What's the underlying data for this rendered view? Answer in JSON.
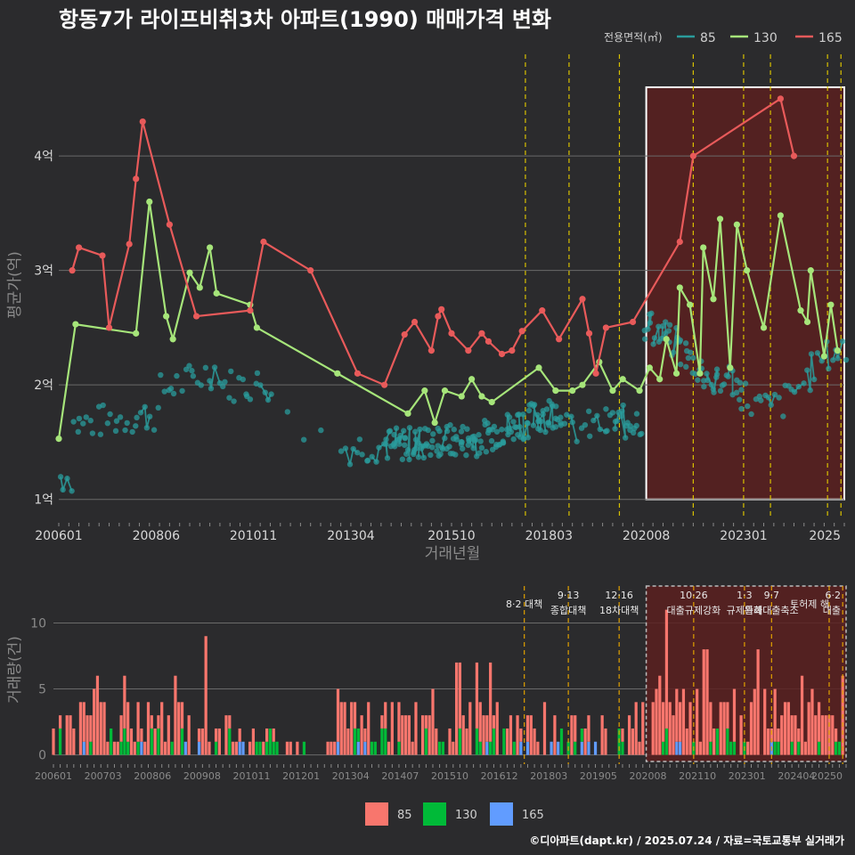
{
  "title": "항동7가 라이프비취3차 아파트(1990) 매매가격 변화",
  "footer": "©디아파트(dapt.kr) / 2025.07.24 / 자료=국토교통부 실거래가",
  "legend_top": {
    "title": "전용면적(㎡)",
    "items": [
      {
        "label": "85",
        "color": "#2a9c9c"
      },
      {
        "label": "130",
        "color": "#a6e57a"
      },
      {
        "label": "165",
        "color": "#e85a5a"
      }
    ]
  },
  "legend_bottom": {
    "items": [
      {
        "label": "85",
        "color": "#f8766d"
      },
      {
        "label": "130",
        "color": "#00ba38"
      },
      {
        "label": "165",
        "color": "#619cff"
      }
    ]
  },
  "colors": {
    "background": "#2b2b2d",
    "grid": "#6a6a6a",
    "highlight_fill": "#5a2020",
    "vline": "#d8c000",
    "bar_vline": "#e0a000"
  },
  "chart_data": [
    {
      "type": "line",
      "title": "항동7가 라이프비취3차 아파트(1990) 매매가격 변화",
      "xlabel": "거래년월",
      "ylabel": "평균가(억)",
      "x_range": [
        "2006-01",
        "2025-07"
      ],
      "ylim": [
        0.85,
        4.95
      ],
      "y_ticks": [
        {
          "v": 1,
          "label": "1억"
        },
        {
          "v": 2,
          "label": "2억"
        },
        {
          "v": 3,
          "label": "3억"
        },
        {
          "v": 4,
          "label": "4억"
        }
      ],
      "x_ticks": [
        {
          "d": "2006-01",
          "label": "200601"
        },
        {
          "d": "2008-06",
          "label": "200806"
        },
        {
          "d": "2010-11",
          "label": "201011"
        },
        {
          "d": "2013-04",
          "label": "201304"
        },
        {
          "d": "2015-10",
          "label": "201510"
        },
        {
          "d": "2018-03",
          "label": "201803"
        },
        {
          "d": "2020-08",
          "label": "202008"
        },
        {
          "d": "2023-01",
          "label": "202301"
        },
        {
          "d": "2025-07",
          "label": "2025"
        }
      ],
      "highlight_range": [
        "2020-08",
        "2025-07"
      ],
      "policy_dates": [
        "2017-08",
        "2018-09",
        "2019-12",
        "2021-10",
        "2023-01",
        "2023-09",
        "2025-02",
        "2025-06"
      ],
      "series": [
        {
          "name": "130",
          "color": "#a6e57a",
          "points": [
            [
              "2006-01",
              1.53
            ],
            [
              "2006-06",
              2.53
            ],
            [
              "2007-12",
              2.45
            ],
            [
              "2008-04",
              3.6
            ],
            [
              "2008-09",
              2.6
            ],
            [
              "2008-11",
              2.4
            ],
            [
              "2009-04",
              2.98
            ],
            [
              "2009-07",
              2.85
            ],
            [
              "2009-10",
              3.2
            ],
            [
              "2009-12",
              2.8
            ],
            [
              "2010-10",
              2.7
            ],
            [
              "2010-12",
              2.5
            ],
            [
              "2012-12",
              2.1
            ],
            [
              "2014-09",
              1.75
            ],
            [
              "2015-02",
              1.95
            ],
            [
              "2015-05",
              1.67
            ],
            [
              "2015-08",
              1.95
            ],
            [
              "2016-01",
              1.9
            ],
            [
              "2016-04",
              2.05
            ],
            [
              "2016-07",
              1.9
            ],
            [
              "2016-10",
              1.85
            ],
            [
              "2017-12",
              2.15
            ],
            [
              "2018-05",
              1.95
            ],
            [
              "2018-10",
              1.95
            ],
            [
              "2019-01",
              2.0
            ],
            [
              "2019-06",
              2.2
            ],
            [
              "2019-10",
              1.95
            ],
            [
              "2020-01",
              2.05
            ],
            [
              "2020-06",
              1.95
            ],
            [
              "2020-09",
              2.15
            ],
            [
              "2020-12",
              2.05
            ],
            [
              "2021-02",
              2.4
            ],
            [
              "2021-05",
              2.1
            ],
            [
              "2021-06",
              2.85
            ],
            [
              "2021-09",
              2.7
            ],
            [
              "2021-12",
              2.1
            ],
            [
              "2022-01",
              3.2
            ],
            [
              "2022-04",
              2.75
            ],
            [
              "2022-06",
              3.45
            ],
            [
              "2022-09",
              2.15
            ],
            [
              "2022-11",
              3.4
            ],
            [
              "2023-02",
              3.0
            ],
            [
              "2023-07",
              2.5
            ],
            [
              "2023-12",
              3.48
            ],
            [
              "2024-06",
              2.65
            ],
            [
              "2024-08",
              2.55
            ],
            [
              "2024-09",
              3.0
            ],
            [
              "2025-01",
              2.25
            ],
            [
              "2025-03",
              2.7
            ],
            [
              "2025-05",
              2.3
            ]
          ]
        },
        {
          "name": "165",
          "color": "#e85a5a",
          "points": [
            [
              "2006-05",
              3.0
            ],
            [
              "2006-07",
              3.2
            ],
            [
              "2007-02",
              3.13
            ],
            [
              "2007-04",
              2.5
            ],
            [
              "2007-10",
              3.23
            ],
            [
              "2007-12",
              3.8
            ],
            [
              "2008-02",
              4.3
            ],
            [
              "2008-10",
              3.4
            ],
            [
              "2009-06",
              2.6
            ],
            [
              "2010-10",
              2.65
            ],
            [
              "2011-02",
              3.25
            ],
            [
              "2012-04",
              3.0
            ],
            [
              "2013-06",
              2.1
            ],
            [
              "2014-02",
              2.0
            ],
            [
              "2014-08",
              2.44
            ],
            [
              "2014-11",
              2.55
            ],
            [
              "2015-04",
              2.3
            ],
            [
              "2015-06",
              2.6
            ],
            [
              "2015-07",
              2.66
            ],
            [
              "2015-10",
              2.45
            ],
            [
              "2016-03",
              2.3
            ],
            [
              "2016-07",
              2.45
            ],
            [
              "2016-09",
              2.38
            ],
            [
              "2017-01",
              2.27
            ],
            [
              "2017-04",
              2.3
            ],
            [
              "2017-07",
              2.47
            ],
            [
              "2018-01",
              2.65
            ],
            [
              "2018-06",
              2.4
            ],
            [
              "2019-01",
              2.75
            ],
            [
              "2019-03",
              2.45
            ],
            [
              "2019-05",
              2.1
            ],
            [
              "2019-08",
              2.5
            ],
            [
              "2020-04",
              2.55
            ],
            [
              "2021-06",
              3.25
            ],
            [
              "2021-10",
              4.0
            ],
            [
              "2023-12",
              4.5
            ],
            [
              "2024-04",
              4.0
            ]
          ]
        }
      ],
      "series_85_color": "#2a9c9c"
    },
    {
      "type": "bar",
      "xlabel": "",
      "ylabel": "거래량(건)",
      "ylim": [
        -0.5,
        13
      ],
      "y_ticks": [
        0,
        5,
        10
      ],
      "x_ticks": [
        "200601",
        "200703",
        "200806",
        "200908",
        "201011",
        "201201",
        "201304",
        "201407",
        "201510",
        "201612",
        "201803",
        "201905",
        "202008",
        "202110",
        "202301",
        "202404",
        "20250"
      ],
      "stacked": true,
      "annotations": [
        {
          "lines": [
            "8·2 대책"
          ],
          "d": "2017-08"
        },
        {
          "lines": [
            "9·13",
            "종합대책"
          ],
          "d": "2018-09"
        },
        {
          "lines": [
            "12·16",
            "18차대책"
          ],
          "d": "2019-12"
        },
        {
          "lines": [
            "10·26",
            "대출규제강화"
          ],
          "d": "2021-10"
        },
        {
          "lines": [
            "1·3",
            "규제완화"
          ],
          "d": "2023-01"
        },
        {
          "lines": [
            "9·7",
            "특례대출축소"
          ],
          "d": "2023-09"
        },
        {
          "lines": [
            "토허제 해"
          ],
          "d": "2025-02"
        },
        {
          "lines": [
            "6·2",
            "대출"
          ],
          "d": "2025-06"
        }
      ]
    }
  ]
}
